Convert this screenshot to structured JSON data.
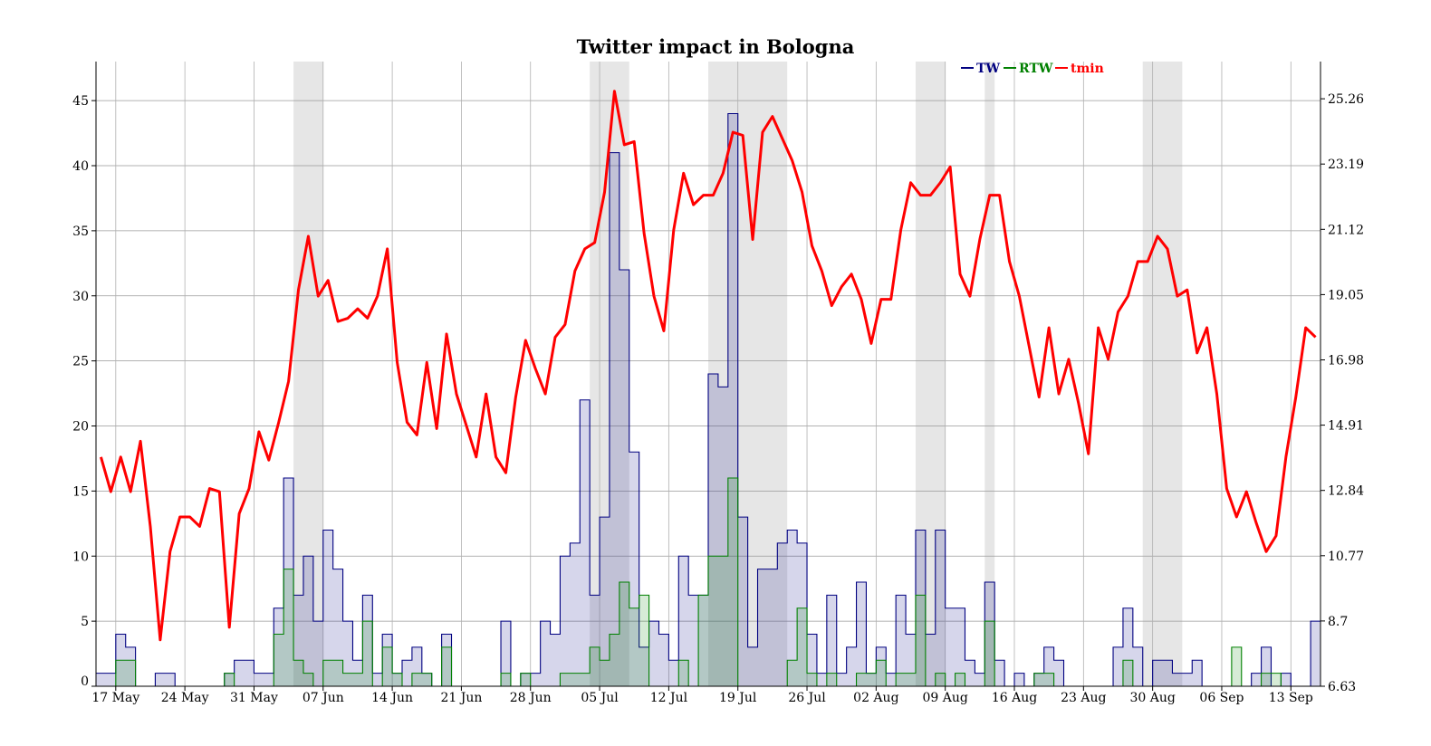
{
  "chart_data": {
    "type": "line",
    "title": "Twitter impact in Bologna",
    "xlabel": "",
    "ylabel": "",
    "grid": true,
    "legend_placement": "top-right",
    "x_start": "2013-05-15",
    "x_end": "2013-09-16",
    "x_tick_labels": [
      "17 May",
      "24 May",
      "31 May",
      "07 Jun",
      "14 Jun",
      "21 Jun",
      "28 Jun",
      "05 Jul",
      "12 Jul",
      "19 Jul",
      "26 Jul",
      "02 Aug",
      "09 Aug",
      "16 Aug",
      "23 Aug",
      "30 Aug",
      "06 Sep",
      "13 Sep"
    ],
    "x_tick_dates": [
      "2013-05-17",
      "2013-05-24",
      "2013-05-31",
      "2013-06-07",
      "2013-06-14",
      "2013-06-21",
      "2013-06-28",
      "2013-07-05",
      "2013-07-12",
      "2013-07-19",
      "2013-07-26",
      "2013-08-02",
      "2013-08-09",
      "2013-08-16",
      "2013-08-23",
      "2013-08-30",
      "2013-09-06",
      "2013-09-13"
    ],
    "y_left": {
      "ylim": [
        0,
        48
      ],
      "ticks": [
        0,
        5,
        10,
        15,
        20,
        25,
        30,
        35,
        40,
        45
      ]
    },
    "y_right": {
      "ylim": [
        6.63,
        26.44
      ],
      "ticks": [
        "6.63",
        "8.7",
        "10.77",
        "12.84",
        "14.91",
        "16.98",
        "19.05",
        "21.12",
        "23.19",
        "25.26"
      ]
    },
    "shaded_date_ranges": [
      [
        "2013-06-04",
        "2013-06-07"
      ],
      [
        "2013-07-04",
        "2013-07-08"
      ],
      [
        "2013-07-16",
        "2013-07-24"
      ],
      [
        "2013-08-06",
        "2013-08-09"
      ],
      [
        "2013-08-13",
        "2013-08-14"
      ],
      [
        "2013-08-29",
        "2013-09-02"
      ]
    ],
    "colors": {
      "TW": "#000080",
      "RTW": "#008000",
      "tmin": "#ff0000",
      "shade": "#e6e6e6",
      "grid": "#999999"
    },
    "series": [
      {
        "name": "TW",
        "axis": "left",
        "style": "step",
        "x": [
          "2013-05-15",
          "2013-05-16",
          "2013-05-17",
          "2013-05-18",
          "2013-05-19",
          "2013-05-20",
          "2013-05-21",
          "2013-05-22",
          "2013-05-23",
          "2013-05-24",
          "2013-05-25",
          "2013-05-26",
          "2013-05-27",
          "2013-05-28",
          "2013-05-29",
          "2013-05-30",
          "2013-05-31",
          "2013-06-01",
          "2013-06-02",
          "2013-06-03",
          "2013-06-04",
          "2013-06-05",
          "2013-06-06",
          "2013-06-07",
          "2013-06-08",
          "2013-06-09",
          "2013-06-10",
          "2013-06-11",
          "2013-06-12",
          "2013-06-13",
          "2013-06-14",
          "2013-06-15",
          "2013-06-16",
          "2013-06-17",
          "2013-06-18",
          "2013-06-19",
          "2013-06-20",
          "2013-06-21",
          "2013-06-22",
          "2013-06-23",
          "2013-06-24",
          "2013-06-25",
          "2013-06-26",
          "2013-06-27",
          "2013-06-28",
          "2013-06-29",
          "2013-06-30",
          "2013-07-01",
          "2013-07-02",
          "2013-07-03",
          "2013-07-04",
          "2013-07-05",
          "2013-07-06",
          "2013-07-07",
          "2013-07-08",
          "2013-07-09",
          "2013-07-10",
          "2013-07-11",
          "2013-07-12",
          "2013-07-13",
          "2013-07-14",
          "2013-07-15",
          "2013-07-16",
          "2013-07-17",
          "2013-07-18",
          "2013-07-19",
          "2013-07-20",
          "2013-07-21",
          "2013-07-22",
          "2013-07-23",
          "2013-07-24",
          "2013-07-25",
          "2013-07-26",
          "2013-07-27",
          "2013-07-28",
          "2013-07-29",
          "2013-07-30",
          "2013-07-31",
          "2013-08-01",
          "2013-08-02",
          "2013-08-03",
          "2013-08-04",
          "2013-08-05",
          "2013-08-06",
          "2013-08-07",
          "2013-08-08",
          "2013-08-09",
          "2013-08-10",
          "2013-08-11",
          "2013-08-12",
          "2013-08-13",
          "2013-08-14",
          "2013-08-15",
          "2013-08-16",
          "2013-08-17",
          "2013-08-18",
          "2013-08-19",
          "2013-08-20",
          "2013-08-21",
          "2013-08-22",
          "2013-08-23",
          "2013-08-24",
          "2013-08-25",
          "2013-08-26",
          "2013-08-27",
          "2013-08-28",
          "2013-08-29",
          "2013-08-30",
          "2013-08-31",
          "2013-09-01",
          "2013-09-02",
          "2013-09-03",
          "2013-09-04",
          "2013-09-05",
          "2013-09-06",
          "2013-09-07",
          "2013-09-08",
          "2013-09-09",
          "2013-09-10",
          "2013-09-11",
          "2013-09-12",
          "2013-09-13",
          "2013-09-14",
          "2013-09-15"
        ],
        "values": [
          1,
          1,
          4,
          3,
          0,
          0,
          1,
          1,
          0,
          0,
          0,
          0,
          0,
          1,
          2,
          2,
          1,
          1,
          6,
          16,
          7,
          10,
          5,
          12,
          9,
          5,
          2,
          7,
          1,
          4,
          1,
          2,
          3,
          1,
          0,
          4,
          0,
          0,
          0,
          0,
          0,
          5,
          0,
          1,
          1,
          5,
          4,
          10,
          11,
          22,
          7,
          13,
          41,
          32,
          18,
          3,
          5,
          4,
          2,
          10,
          7,
          7,
          24,
          23,
          44,
          13,
          3,
          9,
          9,
          11,
          12,
          11,
          4,
          1,
          7,
          1,
          3,
          8,
          1,
          3,
          1,
          7,
          4,
          12,
          4,
          12,
          6,
          6,
          2,
          1,
          8,
          2,
          0,
          1,
          0,
          1,
          3,
          2,
          0,
          0,
          0,
          0,
          0,
          3,
          6,
          3,
          0,
          2,
          2,
          1,
          1,
          2,
          0,
          0,
          0,
          0,
          0,
          1,
          3,
          0,
          1,
          0,
          0,
          5
        ]
      },
      {
        "name": "RTW",
        "axis": "left",
        "style": "step",
        "x": [
          "2013-05-15",
          "2013-05-16",
          "2013-05-17",
          "2013-05-18",
          "2013-05-19",
          "2013-05-20",
          "2013-05-21",
          "2013-05-22",
          "2013-05-23",
          "2013-05-24",
          "2013-05-25",
          "2013-05-26",
          "2013-05-27",
          "2013-05-28",
          "2013-05-29",
          "2013-05-30",
          "2013-05-31",
          "2013-06-01",
          "2013-06-02",
          "2013-06-03",
          "2013-06-04",
          "2013-06-05",
          "2013-06-06",
          "2013-06-07",
          "2013-06-08",
          "2013-06-09",
          "2013-06-10",
          "2013-06-11",
          "2013-06-12",
          "2013-06-13",
          "2013-06-14",
          "2013-06-15",
          "2013-06-16",
          "2013-06-17",
          "2013-06-18",
          "2013-06-19",
          "2013-06-20",
          "2013-06-21",
          "2013-06-22",
          "2013-06-23",
          "2013-06-24",
          "2013-06-25",
          "2013-06-26",
          "2013-06-27",
          "2013-06-28",
          "2013-06-29",
          "2013-06-30",
          "2013-07-01",
          "2013-07-02",
          "2013-07-03",
          "2013-07-04",
          "2013-07-05",
          "2013-07-06",
          "2013-07-07",
          "2013-07-08",
          "2013-07-09",
          "2013-07-10",
          "2013-07-11",
          "2013-07-12",
          "2013-07-13",
          "2013-07-14",
          "2013-07-15",
          "2013-07-16",
          "2013-07-17",
          "2013-07-18",
          "2013-07-19",
          "2013-07-20",
          "2013-07-21",
          "2013-07-22",
          "2013-07-23",
          "2013-07-24",
          "2013-07-25",
          "2013-07-26",
          "2013-07-27",
          "2013-07-28",
          "2013-07-29",
          "2013-07-30",
          "2013-07-31",
          "2013-08-01",
          "2013-08-02",
          "2013-08-03",
          "2013-08-04",
          "2013-08-05",
          "2013-08-06",
          "2013-08-07",
          "2013-08-08",
          "2013-08-09",
          "2013-08-10",
          "2013-08-11",
          "2013-08-12",
          "2013-08-13",
          "2013-08-14",
          "2013-08-15",
          "2013-08-16",
          "2013-08-17",
          "2013-08-18",
          "2013-08-19",
          "2013-08-20",
          "2013-08-21",
          "2013-08-22",
          "2013-08-23",
          "2013-08-24",
          "2013-08-25",
          "2013-08-26",
          "2013-08-27",
          "2013-08-28",
          "2013-08-29",
          "2013-08-30",
          "2013-08-31",
          "2013-09-01",
          "2013-09-02",
          "2013-09-03",
          "2013-09-04",
          "2013-09-05",
          "2013-09-06",
          "2013-09-07",
          "2013-09-08",
          "2013-09-09",
          "2013-09-10",
          "2013-09-11",
          "2013-09-12",
          "2013-09-13",
          "2013-09-14",
          "2013-09-15"
        ],
        "values": [
          0,
          0,
          2,
          2,
          0,
          0,
          0,
          0,
          0,
          0,
          0,
          0,
          0,
          1,
          0,
          0,
          0,
          0,
          4,
          9,
          2,
          1,
          0,
          2,
          2,
          1,
          1,
          5,
          0,
          3,
          1,
          0,
          1,
          1,
          0,
          3,
          0,
          0,
          0,
          0,
          0,
          1,
          0,
          1,
          0,
          0,
          0,
          1,
          1,
          1,
          3,
          2,
          4,
          8,
          6,
          7,
          0,
          0,
          0,
          2,
          0,
          7,
          10,
          10,
          16,
          0,
          0,
          0,
          0,
          0,
          2,
          6,
          1,
          0,
          1,
          0,
          0,
          1,
          1,
          2,
          0,
          1,
          1,
          7,
          0,
          1,
          0,
          1,
          0,
          0,
          5,
          0,
          0,
          0,
          0,
          1,
          1,
          0,
          0,
          0,
          0,
          0,
          0,
          0,
          2,
          0,
          0,
          0,
          0,
          0,
          0,
          0,
          0,
          0,
          0,
          3,
          0,
          0,
          1,
          1,
          0,
          0,
          0,
          0
        ]
      },
      {
        "name": "tmin",
        "axis": "right",
        "style": "line",
        "x": [
          "2013-05-15",
          "2013-05-16",
          "2013-05-17",
          "2013-05-18",
          "2013-05-19",
          "2013-05-20",
          "2013-05-21",
          "2013-05-22",
          "2013-05-23",
          "2013-05-24",
          "2013-05-25",
          "2013-05-26",
          "2013-05-27",
          "2013-05-28",
          "2013-05-29",
          "2013-05-30",
          "2013-05-31",
          "2013-06-01",
          "2013-06-02",
          "2013-06-03",
          "2013-06-04",
          "2013-06-05",
          "2013-06-06",
          "2013-06-07",
          "2013-06-08",
          "2013-06-09",
          "2013-06-10",
          "2013-06-11",
          "2013-06-12",
          "2013-06-13",
          "2013-06-14",
          "2013-06-15",
          "2013-06-16",
          "2013-06-17",
          "2013-06-18",
          "2013-06-19",
          "2013-06-20",
          "2013-06-21",
          "2013-06-22",
          "2013-06-23",
          "2013-06-24",
          "2013-06-25",
          "2013-06-26",
          "2013-06-27",
          "2013-06-28",
          "2013-06-29",
          "2013-06-30",
          "2013-07-01",
          "2013-07-02",
          "2013-07-03",
          "2013-07-04",
          "2013-07-05",
          "2013-07-06",
          "2013-07-07",
          "2013-07-08",
          "2013-07-09",
          "2013-07-10",
          "2013-07-11",
          "2013-07-12",
          "2013-07-13",
          "2013-07-14",
          "2013-07-15",
          "2013-07-16",
          "2013-07-17",
          "2013-07-18",
          "2013-07-19",
          "2013-07-20",
          "2013-07-21",
          "2013-07-22",
          "2013-07-23",
          "2013-07-24",
          "2013-07-25",
          "2013-07-26",
          "2013-07-27",
          "2013-07-28",
          "2013-07-29",
          "2013-07-30",
          "2013-07-31",
          "2013-08-01",
          "2013-08-02",
          "2013-08-03",
          "2013-08-04",
          "2013-08-05",
          "2013-08-06",
          "2013-08-07",
          "2013-08-08",
          "2013-08-09",
          "2013-08-10",
          "2013-08-11",
          "2013-08-12",
          "2013-08-13",
          "2013-08-14",
          "2013-08-15",
          "2013-08-16",
          "2013-08-17",
          "2013-08-18",
          "2013-08-19",
          "2013-08-20",
          "2013-08-21",
          "2013-08-22",
          "2013-08-23",
          "2013-08-24",
          "2013-08-25",
          "2013-08-26",
          "2013-08-27",
          "2013-08-28",
          "2013-08-29",
          "2013-08-30",
          "2013-08-31",
          "2013-09-01",
          "2013-09-02",
          "2013-09-03",
          "2013-09-04",
          "2013-09-05",
          "2013-09-06",
          "2013-09-07",
          "2013-09-08",
          "2013-09-09",
          "2013-09-10",
          "2013-09-11",
          "2013-09-12",
          "2013-09-13",
          "2013-09-14",
          "2013-09-15"
        ],
        "values": [
          13.9,
          12.8,
          13.9,
          12.8,
          14.4,
          11.7,
          8.1,
          10.9,
          12.0,
          12.0,
          11.7,
          12.9,
          12.8,
          8.5,
          12.1,
          12.9,
          14.7,
          13.8,
          15.0,
          16.3,
          19.2,
          20.9,
          19.0,
          19.5,
          18.2,
          18.3,
          18.6,
          18.3,
          19.0,
          20.5,
          16.9,
          15.0,
          14.6,
          16.9,
          14.8,
          17.8,
          15.9,
          14.9,
          13.9,
          15.9,
          13.9,
          13.4,
          15.8,
          17.6,
          16.7,
          15.9,
          17.7,
          18.1,
          19.8,
          20.5,
          20.7,
          22.3,
          25.5,
          23.8,
          23.9,
          21.0,
          19.0,
          17.9,
          21.1,
          22.9,
          21.9,
          22.2,
          22.2,
          22.9,
          24.2,
          24.1,
          20.8,
          24.2,
          24.7,
          24.0,
          23.3,
          22.3,
          20.6,
          19.8,
          18.7,
          19.3,
          19.7,
          18.9,
          17.5,
          18.9,
          18.9,
          21.1,
          22.6,
          22.2,
          22.2,
          22.6,
          23.1,
          19.7,
          19.0,
          20.8,
          22.2,
          22.2,
          20.1,
          19.0,
          17.4,
          15.8,
          18.0,
          15.9,
          17.0,
          15.6,
          14.0,
          18.0,
          17.0,
          18.5,
          19.0,
          20.1,
          20.1,
          20.9,
          20.5,
          19.0,
          19.2,
          17.2,
          18.0,
          15.9,
          12.9,
          12.0,
          12.8,
          11.8,
          10.9,
          11.4,
          13.9,
          15.8,
          18.0,
          17.7
        ]
      }
    ]
  }
}
